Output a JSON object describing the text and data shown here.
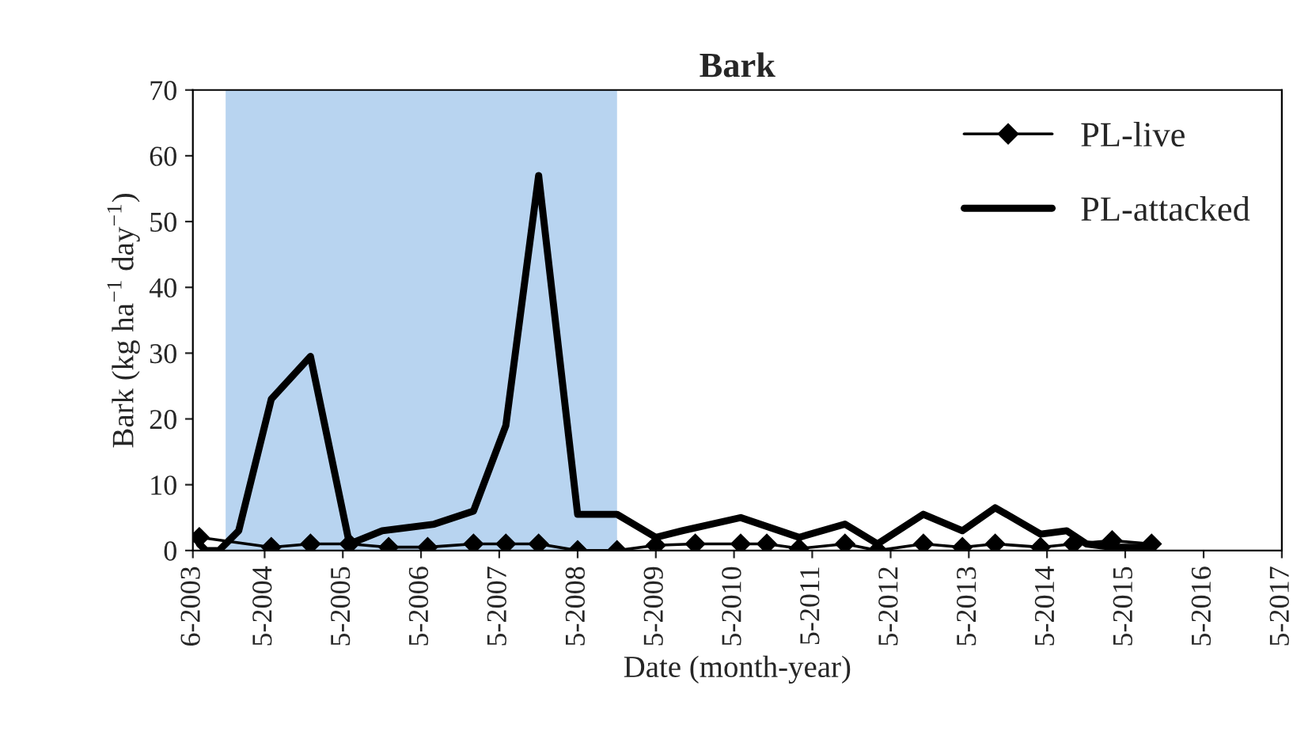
{
  "chart_data": {
    "type": "line",
    "title": "Bark",
    "xlabel": "Date (month-year)",
    "ylabel": "Bark (kg ha$^{−1}$ day$^{−1}$)",
    "series": [
      {
        "name": "PL-live",
        "color": "#000000",
        "marker": "diamond",
        "line_style": "solid",
        "x": [
          "2003-07",
          "2004-06",
          "2004-12",
          "2005-06",
          "2005-12",
          "2006-06",
          "2007-01",
          "2007-06",
          "2007-11",
          "2008-05",
          "2008-11",
          "2009-05",
          "2009-11",
          "2010-06",
          "2010-10",
          "2011-03",
          "2011-10",
          "2012-03",
          "2012-10",
          "2013-04",
          "2013-09",
          "2014-04",
          "2014-09",
          "2015-03",
          "2015-09"
        ],
        "values": [
          2,
          0.5,
          1,
          1,
          0.5,
          0.5,
          1,
          1,
          1,
          0,
          0,
          0.8,
          1,
          1,
          1,
          0.3,
          1,
          0,
          1,
          0.5,
          1,
          0.5,
          1,
          1.5,
          1
        ]
      },
      {
        "name": "PL-attacked",
        "color": "#000000",
        "marker": "none",
        "line_style": "solid",
        "x": [
          "2003-07",
          "2003-08",
          "2003-10",
          "2004-01",
          "2004-06",
          "2004-12",
          "2005-06",
          "2005-11",
          "2006-07",
          "2007-01",
          "2007-06",
          "2007-11",
          "2008-05",
          "2008-11",
          "2009-05",
          "2009-09",
          "2010-06",
          "2011-03",
          "2011-10",
          "2012-03",
          "2012-10",
          "2013-04",
          "2013-09",
          "2014-04",
          "2014-08",
          "2014-11",
          "2015-03",
          "2015-09"
        ],
        "values": [
          1,
          0,
          0,
          3,
          23,
          29.5,
          1,
          3,
          4,
          6,
          19,
          57,
          5.5,
          5.5,
          2,
          3,
          5,
          2,
          4,
          1,
          5.5,
          3,
          6.5,
          2.5,
          3,
          1,
          0.5,
          0.5
        ]
      }
    ],
    "xlim": [
      "2003-06",
      "2017-05"
    ],
    "xticks": [
      {
        "value": "2003-06",
        "label": "6-2003"
      },
      {
        "value": "2004-05",
        "label": "5-2004"
      },
      {
        "value": "2005-05",
        "label": "5-2005"
      },
      {
        "value": "2006-05",
        "label": "5-2006"
      },
      {
        "value": "2007-05",
        "label": "5-2007"
      },
      {
        "value": "2008-05",
        "label": "5-2008"
      },
      {
        "value": "2009-05",
        "label": "5-2009"
      },
      {
        "value": "2010-05",
        "label": "5-2010"
      },
      {
        "value": "2011-05",
        "label": "5-2011"
      },
      {
        "value": "2012-05",
        "label": "5-2012"
      },
      {
        "value": "2013-05",
        "label": "5-2013"
      },
      {
        "value": "2014-05",
        "label": "5-2014"
      },
      {
        "value": "2015-05",
        "label": "5-2015"
      },
      {
        "value": "2016-05",
        "label": "5-2016"
      },
      {
        "value": "2017-05",
        "label": "5-2017"
      }
    ],
    "ylim": [
      0,
      70
    ],
    "yticks": [
      0,
      10,
      20,
      30,
      40,
      50,
      60,
      70
    ],
    "bands": [
      {
        "axis": "x",
        "from": "2003-11",
        "to": "2008-11",
        "color": "#b8d4f0"
      }
    ],
    "grid": false,
    "legend": "top right"
  }
}
